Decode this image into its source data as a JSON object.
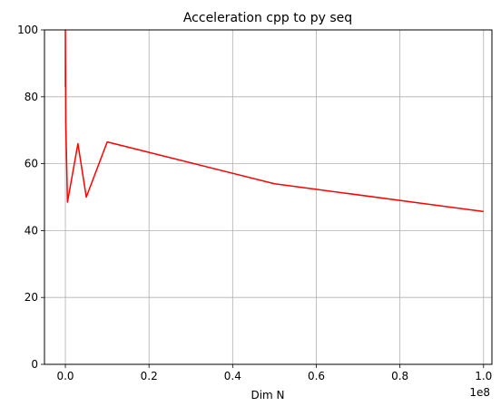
{
  "chart_data": {
    "type": "line",
    "title": "Acceleration cpp to py seq",
    "xlabel": "Dim N",
    "ylabel": "",
    "x_offset_label": "1e8",
    "x_scale": 100000000,
    "xlim": [
      -0.05,
      1.02
    ],
    "ylim": [
      0,
      100
    ],
    "grid": true,
    "xticks": [
      0.0,
      0.2,
      0.4,
      0.6,
      0.8,
      1.0
    ],
    "xtick_labels": [
      "0.0",
      "0.2",
      "0.4",
      "0.6",
      "0.8",
      "1.0"
    ],
    "yticks": [
      0,
      20,
      40,
      60,
      80,
      100
    ],
    "ytick_labels": [
      "0",
      "20",
      "40",
      "60",
      "80",
      "100"
    ],
    "series": [
      {
        "color": "#ff0000",
        "x": [
          0.0,
          0.0,
          0.0,
          0.001,
          0.005,
          0.03,
          0.05,
          0.1,
          0.5,
          1.0
        ],
        "y": [
          87,
          83,
          100,
          72,
          48.5,
          66,
          50,
          66.5,
          54,
          45.7
        ]
      }
    ]
  }
}
